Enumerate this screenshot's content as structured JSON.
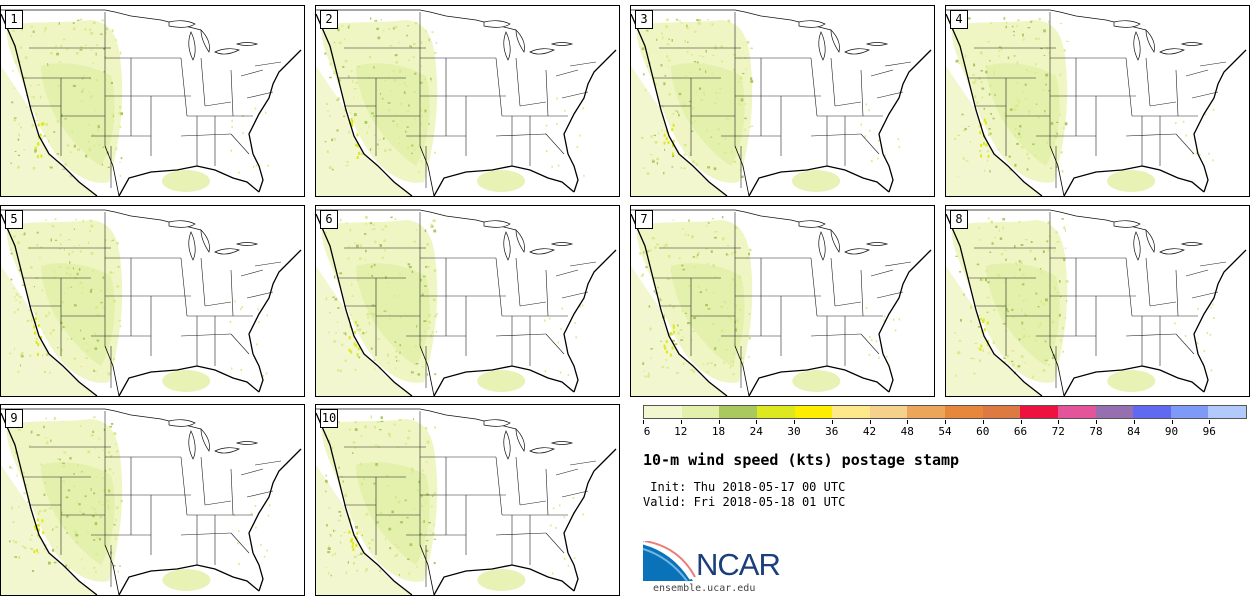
{
  "panels": [
    "1",
    "2",
    "3",
    "4",
    "5",
    "6",
    "7",
    "8",
    "9",
    "10"
  ],
  "colorbar": {
    "colors": [
      "#f3f7cf",
      "#e2f0ac",
      "#a9c95f",
      "#dde81e",
      "#fdee00",
      "#fde88a",
      "#f6d18b",
      "#eba65a",
      "#e6873b",
      "#de7a41",
      "#ee1240",
      "#e3549a",
      "#956fb0",
      "#5f69f2",
      "#7f99f9",
      "#b2c9fb"
    ],
    "labels": [
      "6",
      "12",
      "18",
      "24",
      "30",
      "36",
      "42",
      "48",
      "54",
      "60",
      "66",
      "72",
      "78",
      "84",
      "90",
      "96"
    ]
  },
  "title": "10-m wind speed (kts) postage stamp",
  "init_line": " Init: Thu 2018-05-17 00 UTC",
  "valid_line": "Valid: Fri 2018-05-18 01 UTC",
  "logo_text": "NCAR",
  "url": "ensemble.ucar.edu"
}
